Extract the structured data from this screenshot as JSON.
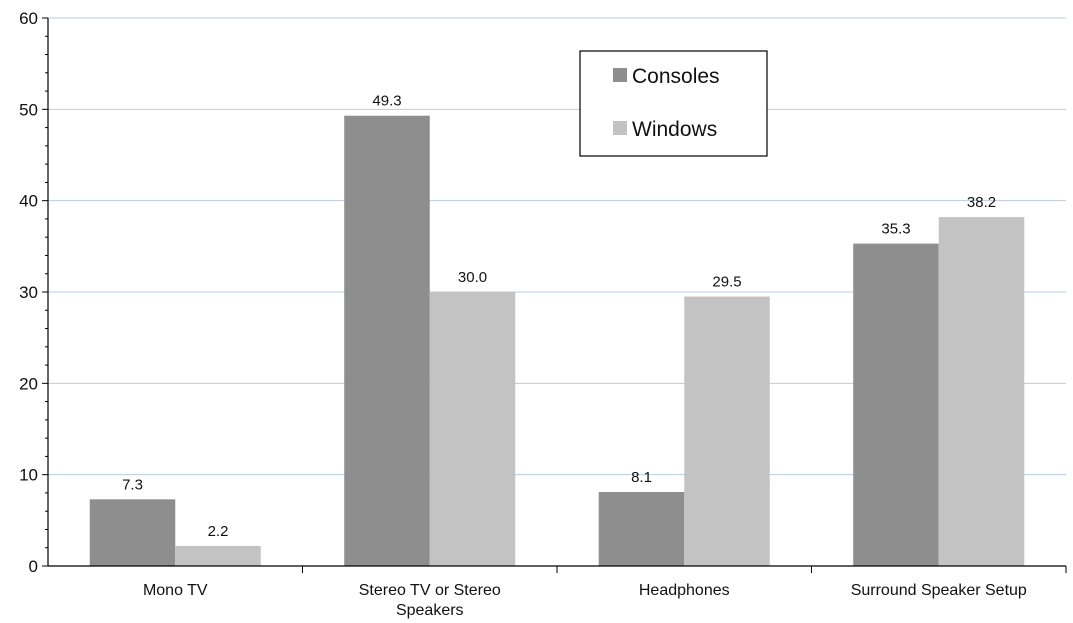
{
  "chart_data": {
    "type": "bar",
    "categories": [
      "Mono TV",
      "Stereo TV or Stereo Speakers",
      "Headphones",
      "Surround Speaker Setup"
    ],
    "series": [
      {
        "name": "Consoles",
        "values": [
          7.3,
          49.3,
          8.1,
          35.3
        ],
        "labels": [
          "7.3",
          "49.3",
          "8.1",
          "35.3"
        ],
        "color": "#8e8e8e"
      },
      {
        "name": "Windows",
        "values": [
          2.2,
          30.0,
          29.5,
          38.2
        ],
        "labels": [
          "2.2",
          "30.0",
          "29.5",
          "38.2"
        ],
        "color": "#c3c3c3"
      }
    ],
    "yticks": [
      "0",
      "10",
      "20",
      "30",
      "40",
      "50",
      "60"
    ],
    "ylim": [
      0,
      60
    ],
    "title": "",
    "xlabel": "",
    "ylabel": "",
    "grid": true,
    "gridline_color": "#b9cde3",
    "legend_position": "top-center"
  }
}
